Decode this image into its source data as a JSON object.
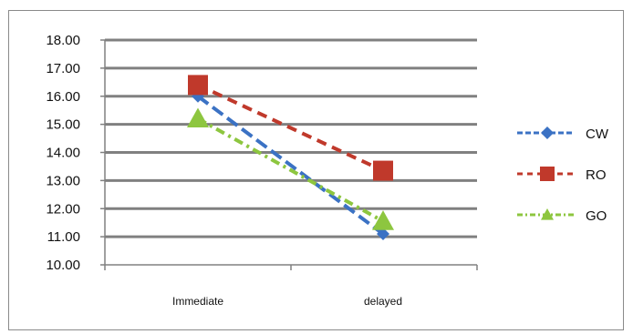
{
  "chart_data": {
    "type": "line",
    "categories": [
      "Immediate",
      "delayed"
    ],
    "ylim": [
      10,
      18
    ],
    "yticks": [
      "10.00",
      "11.00",
      "12.00",
      "13.00",
      "14.00",
      "15.00",
      "16.00",
      "17.00",
      "18.00"
    ],
    "grid": true,
    "legend_position": "right",
    "series": [
      {
        "name": "CW",
        "values": [
          16.0,
          11.1
        ],
        "color": "#3b72c4",
        "marker": "diamond"
      },
      {
        "name": "RO",
        "values": [
          16.4,
          13.35
        ],
        "color": "#c0392b",
        "marker": "square"
      },
      {
        "name": "GO",
        "values": [
          15.2,
          11.55
        ],
        "color": "#8dc63f",
        "marker": "triangle"
      }
    ]
  }
}
